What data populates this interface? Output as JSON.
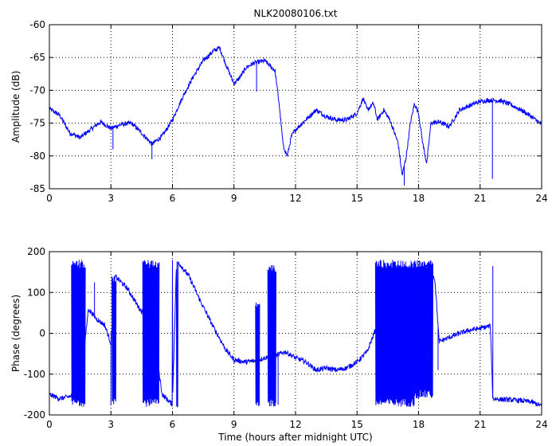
{
  "figure_title": "NLK20080106.txt",
  "colors": {
    "series": "#0000ff",
    "axes": "#000000",
    "grid": "#000000",
    "background": "#ffffff"
  },
  "chart_data": [
    {
      "type": "line",
      "panel": "top",
      "title": "NLK20080106.txt",
      "xlabel": "",
      "ylabel": "Amplitude (dB)",
      "xlim": [
        0,
        24
      ],
      "ylim": [
        -85,
        -60
      ],
      "xticks": [
        0,
        3,
        6,
        9,
        12,
        15,
        18,
        21,
        24
      ],
      "yticks": [
        -85,
        -80,
        -75,
        -70,
        -65,
        -60
      ],
      "grid": true,
      "series": [
        {
          "x": [
            0,
            0.5,
            1.0,
            1.5,
            2.0,
            2.5,
            3.0,
            3.5,
            4.0,
            4.5,
            5.0,
            5.5,
            6.0,
            6.5,
            7.0,
            7.5,
            8.0,
            8.3,
            8.6,
            9.0,
            9.3,
            9.6,
            10.0,
            10.5,
            11.0,
            11.2,
            11.4,
            11.6,
            11.8,
            12.0,
            12.5,
            13.0,
            13.5,
            14.0,
            14.5,
            15.0,
            15.3,
            15.5,
            15.8,
            16.0,
            16.3,
            16.6,
            17.0,
            17.2,
            17.4,
            17.6,
            17.8,
            18.0,
            18.2,
            18.4,
            18.6,
            19.0,
            19.5,
            20.0,
            20.5,
            21.0,
            21.5,
            22.0,
            22.5,
            23.0,
            23.5,
            24.0
          ],
          "y": [
            -72.8,
            -73.8,
            -76.5,
            -77.2,
            -76.0,
            -74.8,
            -75.8,
            -75.2,
            -75.0,
            -76.5,
            -78.2,
            -77.0,
            -74.5,
            -71.0,
            -68.0,
            -65.5,
            -64.0,
            -63.5,
            -66.0,
            -69.0,
            -68.0,
            -66.5,
            -65.8,
            -65.5,
            -67.0,
            -72.0,
            -78.5,
            -80.0,
            -77.0,
            -76.0,
            -74.5,
            -73.0,
            -74.0,
            -74.5,
            -74.5,
            -73.5,
            -71.2,
            -73.0,
            -72.0,
            -74.5,
            -73.0,
            -74.5,
            -78.0,
            -83.0,
            -80.0,
            -75.0,
            -72.0,
            -73.5,
            -78.0,
            -81.2,
            -75.0,
            -74.8,
            -75.5,
            -73.0,
            -72.3,
            -71.7,
            -71.5,
            -71.6,
            -72.2,
            -73.0,
            -74.0,
            -75.2
          ],
          "spikes": [
            {
              "x": 3.1,
              "y": -79.0
            },
            {
              "x": 5.0,
              "y": -80.5
            },
            {
              "x": 10.1,
              "y": -70.2
            },
            {
              "x": 17.3,
              "y": -84.5
            },
            {
              "x": 21.6,
              "y": -83.5
            }
          ]
        }
      ]
    },
    {
      "type": "line",
      "panel": "bottom",
      "title": "",
      "xlabel": "Time (hours after midnight UTC)",
      "ylabel": "Phase (degrees)",
      "xlim": [
        0,
        24
      ],
      "ylim": [
        -200,
        200
      ],
      "xticks": [
        0,
        3,
        6,
        9,
        12,
        15,
        18,
        21,
        24
      ],
      "yticks": [
        -200,
        -100,
        0,
        100,
        200
      ],
      "grid": true,
      "series": [
        {
          "x": [
            0,
            0.5,
            1.0,
            1.5,
            1.9,
            2.3,
            2.7,
            3.0,
            3.2,
            3.8,
            4.4,
            5.0,
            5.5,
            5.8,
            6.0,
            6.2,
            6.8,
            7.4,
            8.0,
            8.6,
            9.0,
            9.5,
            10.0,
            10.5,
            11.0,
            11.5,
            12.0,
            12.5,
            13.0,
            13.5,
            14.0,
            14.5,
            15.0,
            15.5,
            15.9,
            16.5,
            17.0,
            17.5,
            18.0,
            18.5,
            18.8,
            19.0,
            19.5,
            20.0,
            20.5,
            21.0,
            21.5,
            21.62,
            22.0,
            22.5,
            23.0,
            23.5,
            24.0
          ],
          "y": [
            -150,
            -160,
            -155,
            -140,
            60,
            35,
            20,
            -25,
            140,
            110,
            60,
            25,
            -150,
            -165,
            -175,
            180,
            140,
            75,
            15,
            -40,
            -65,
            -70,
            -68,
            -60,
            -55,
            -45,
            -60,
            -70,
            -90,
            -85,
            -90,
            -85,
            -70,
            -45,
            10,
            30,
            75,
            120,
            150,
            170,
            130,
            -20,
            -10,
            0,
            8,
            12,
            18,
            -160,
            -162,
            -163,
            -165,
            -168,
            -178
          ],
          "bursts": [
            {
              "x0": 1.08,
              "x1": 1.75,
              "lo": -180,
              "hi": 180
            },
            {
              "x0": 3.05,
              "x1": 3.25,
              "lo": -175,
              "hi": 140
            },
            {
              "x0": 4.55,
              "x1": 5.35,
              "lo": -180,
              "hi": 180
            },
            {
              "x0": 10.05,
              "x1": 10.25,
              "lo": -180,
              "hi": 85
            },
            {
              "x0": 10.65,
              "x1": 11.05,
              "lo": -180,
              "hi": 170
            },
            {
              "x0": 15.9,
              "x1": 17.8,
              "lo": -180,
              "hi": 180
            },
            {
              "x0": 17.8,
              "x1": 18.7,
              "lo": -160,
              "hi": 180
            }
          ],
          "spikes": [
            {
              "x": 2.2,
              "y": 125
            },
            {
              "x": 3.0,
              "y": -175
            },
            {
              "x": 11.15,
              "y": -175
            },
            {
              "x": 18.95,
              "y": -90
            },
            {
              "x": 21.62,
              "y": 165
            }
          ]
        }
      ]
    }
  ]
}
